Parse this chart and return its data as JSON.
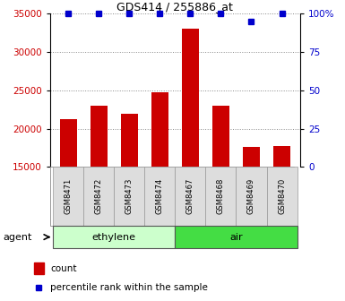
{
  "title": "GDS414 / 255886_at",
  "samples": [
    "GSM8471",
    "GSM8472",
    "GSM8473",
    "GSM8474",
    "GSM8467",
    "GSM8468",
    "GSM8469",
    "GSM8470"
  ],
  "counts": [
    21200,
    23000,
    22000,
    24700,
    33000,
    23000,
    17600,
    17700
  ],
  "percentiles": [
    100,
    100,
    100,
    100,
    100,
    100,
    95,
    100
  ],
  "groups": [
    {
      "label": "ethylene",
      "start": 0,
      "end": 4,
      "color": "#ccffcc",
      "edge_color": "#aaddaa"
    },
    {
      "label": "air",
      "start": 4,
      "end": 8,
      "color": "#44dd44",
      "edge_color": "#33aa33"
    }
  ],
  "agent_label": "agent",
  "ylim_left": [
    15000,
    35000
  ],
  "ylim_right": [
    0,
    100
  ],
  "yticks_left": [
    15000,
    20000,
    25000,
    30000,
    35000
  ],
  "yticks_right": [
    0,
    25,
    50,
    75,
    100
  ],
  "yticklabels_right": [
    "0",
    "25",
    "50",
    "75",
    "100%"
  ],
  "bar_color": "#cc0000",
  "dot_color": "#0000cc",
  "grid_color": "#888888",
  "tick_label_color_left": "#cc0000",
  "tick_label_color_right": "#0000cc",
  "legend_count_color": "#cc0000",
  "legend_percentile_color": "#0000cc",
  "bg_color": "#ffffff"
}
